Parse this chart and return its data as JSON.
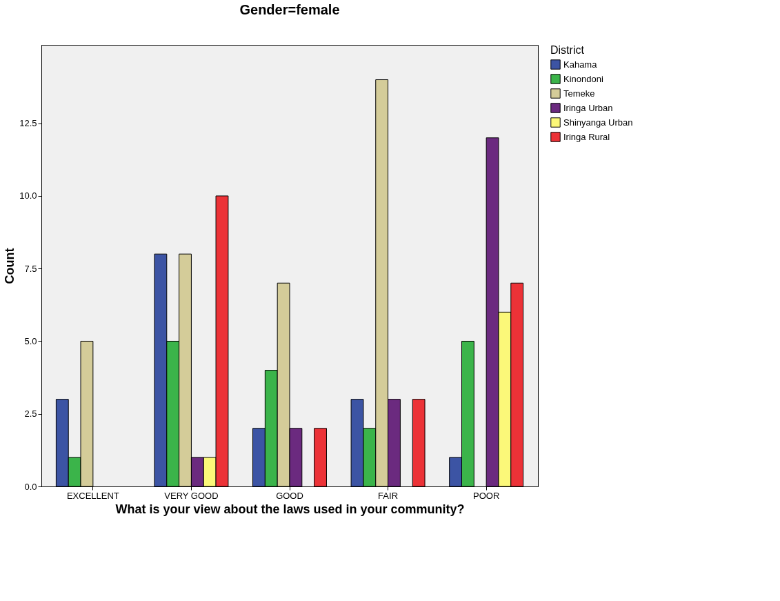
{
  "chart_data": {
    "type": "bar",
    "title": "Gender=female",
    "xlabel": "What is your view about the laws used in your community?",
    "ylabel": "Count",
    "legend_title": "District",
    "categories": [
      "EXCELLENT",
      "VERY GOOD",
      "GOOD",
      "FAIR",
      "POOR"
    ],
    "series": [
      {
        "name": "Kahama",
        "color": "#3c54a4",
        "values": [
          3,
          8,
          2,
          3,
          1
        ]
      },
      {
        "name": "Kinondoni",
        "color": "#3bb44a",
        "values": [
          1,
          5,
          4,
          2,
          5
        ]
      },
      {
        "name": "Temeke",
        "color": "#d4cc99",
        "values": [
          5,
          8,
          7,
          14,
          null
        ]
      },
      {
        "name": "Iringa Urban",
        "color": "#6b2a7f",
        "values": [
          null,
          1,
          2,
          3,
          12
        ]
      },
      {
        "name": "Shinyanga Urban",
        "color": "#fbf879",
        "values": [
          null,
          1,
          null,
          null,
          6
        ]
      },
      {
        "name": "Iringa Rural",
        "color": "#ec3237",
        "values": [
          null,
          10,
          2,
          3,
          7
        ]
      }
    ],
    "ylim": [
      0,
      15.2
    ],
    "yticks": [
      {
        "value": 0,
        "label": "0.0"
      },
      {
        "value": 2.5,
        "label": "2.5"
      },
      {
        "value": 5,
        "label": "5.0"
      },
      {
        "value": 7.5,
        "label": "7.5"
      },
      {
        "value": 10,
        "label": "10.0"
      },
      {
        "value": 12.5,
        "label": "12.5"
      }
    ],
    "grid": false,
    "legend": "top right"
  }
}
